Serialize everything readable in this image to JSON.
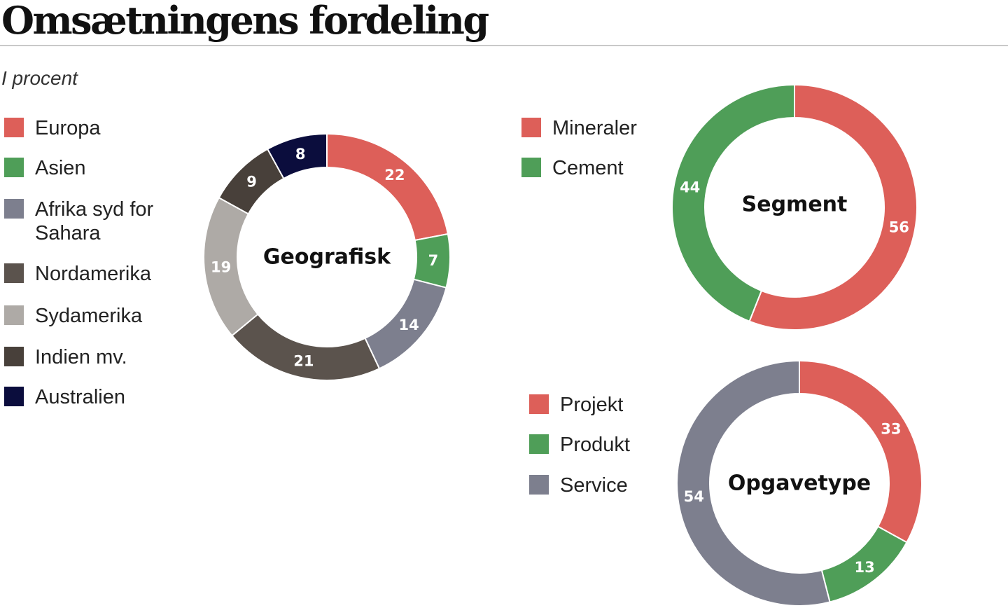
{
  "title": "Omsætningens fordeling",
  "subtitle": "I procent",
  "colors": {
    "red": "#dd5f59",
    "green": "#4f9e58",
    "gray_blue": "#7d7f8e",
    "dark_brown": "#5b534d",
    "light_gray": "#aeaaa6",
    "darkest_brown": "#48403a",
    "navy": "#0b0d3d"
  },
  "chart_data": [
    {
      "type": "pie",
      "variant": "donut",
      "title": "Geografisk",
      "categories": [
        "Europa",
        "Asien",
        "Afrika syd for Sahara",
        "Nordamerika",
        "Sydamerika",
        "Indien mv.",
        "Australien"
      ],
      "values": [
        22,
        7,
        14,
        21,
        19,
        9,
        8
      ],
      "colors": [
        "#dd5f59",
        "#4f9e58",
        "#7d7f8e",
        "#5b534d",
        "#aeaaa6",
        "#48403a",
        "#0b0d3d"
      ],
      "legend": [
        "Europa",
        "Asien",
        "Afrika syd for Sahara",
        "Nordamerika",
        "Sydamerika",
        "Indien mv.",
        "Australien"
      ],
      "legend_colors": [
        "#dd5f59",
        "#4f9e58",
        "#7d7f8e",
        "#5b534d",
        "#aeaaa6",
        "#48403a",
        "#0b0d3d"
      ],
      "legend_placement": "left"
    },
    {
      "type": "pie",
      "variant": "donut",
      "title": "Segment",
      "categories": [
        "Mineraler",
        "Cement"
      ],
      "values": [
        56,
        44
      ],
      "colors": [
        "#dd5f59",
        "#4f9e58"
      ],
      "legend": [
        "Mineraler",
        "Cement"
      ],
      "legend_colors": [
        "#dd5f59",
        "#4f9e58"
      ],
      "legend_placement": "left"
    },
    {
      "type": "pie",
      "variant": "donut",
      "title": "Opgavetype",
      "categories": [
        "Projekt",
        "Produkt",
        "Service"
      ],
      "values": [
        33,
        13,
        54
      ],
      "colors": [
        "#dd5f59",
        "#4f9e58",
        "#7d7f8e"
      ],
      "legend": [
        "Projekt",
        "Produkt",
        "Service"
      ],
      "legend_colors": [
        "#dd5f59",
        "#4f9e58",
        "#7d7f8e"
      ],
      "legend_placement": "left"
    }
  ]
}
